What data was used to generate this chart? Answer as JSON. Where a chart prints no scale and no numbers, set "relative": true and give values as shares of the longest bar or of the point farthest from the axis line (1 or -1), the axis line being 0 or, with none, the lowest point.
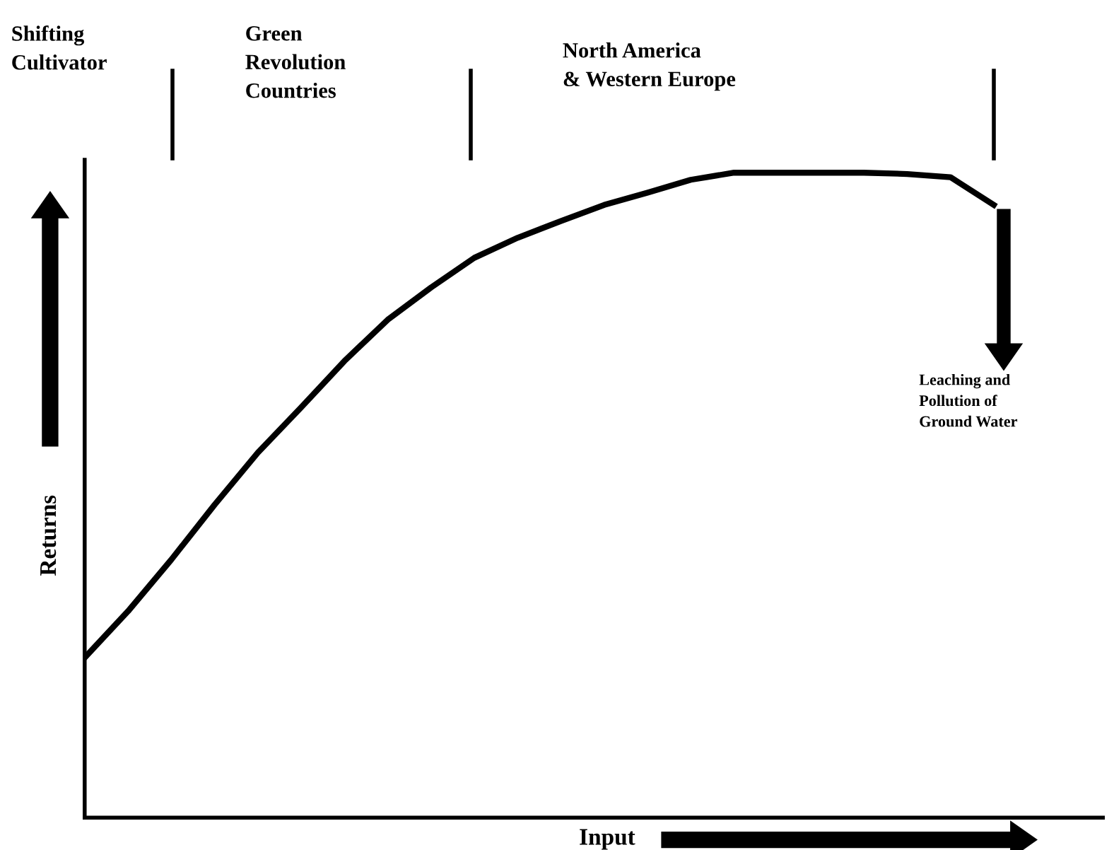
{
  "chart_data": {
    "type": "line",
    "relative": true,
    "xlabel": "Input",
    "ylabel": "Returns",
    "color": "#000000",
    "categories": [
      null,
      null,
      null,
      null,
      null,
      null,
      null,
      null,
      null,
      null,
      null,
      null,
      null,
      null,
      null,
      null,
      null,
      null,
      null,
      null,
      null,
      null
    ],
    "values": [
      0.248,
      0.32,
      0.4,
      0.485,
      0.566,
      0.636,
      0.708,
      0.772,
      0.822,
      0.868,
      0.899,
      0.925,
      0.95,
      0.969,
      0.989,
      1.0,
      1.0,
      1.0,
      1.0,
      0.998,
      0.993,
      0.95
    ],
    "annotations": [
      "Shifting\nCultivator",
      "Green\nRevolution\nCountries",
      "North America\n& Western Europe",
      "Leaching and\nPollution of\nGround Water"
    ]
  }
}
